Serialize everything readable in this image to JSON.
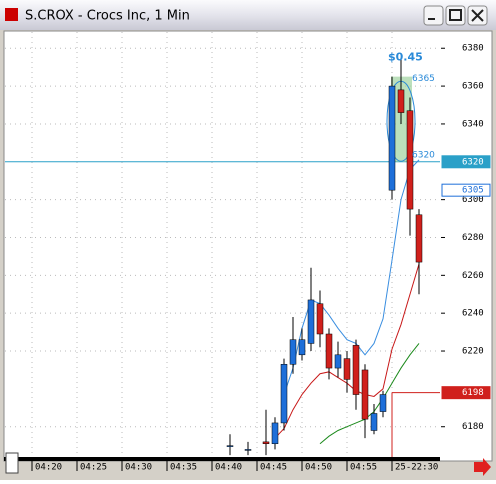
{
  "window": {
    "title": "S.CROX - Crocs Inc, 1 Min"
  },
  "chart_data": {
    "type": "candlestick",
    "categories": [
      null,
      null,
      null,
      "04:20",
      null,
      null,
      null,
      null,
      "04:25",
      null,
      null,
      null,
      null,
      "04:30",
      null,
      null,
      null,
      null,
      "04:35",
      null,
      null,
      null,
      null,
      "04:40",
      null,
      null,
      null,
      null,
      "04:45",
      null,
      null,
      null,
      null,
      "04:50",
      null,
      null,
      null,
      null,
      "04:55",
      null,
      null,
      null,
      null,
      "25-22:30",
      null,
      null,
      null
    ],
    "open": [
      null,
      null,
      null,
      null,
      null,
      null,
      null,
      null,
      null,
      null,
      null,
      null,
      null,
      null,
      null,
      null,
      null,
      null,
      null,
      null,
      null,
      null,
      null,
      null,
      null,
      6170,
      null,
      6168,
      null,
      6172,
      6171,
      6182,
      6213,
      6218,
      6224,
      6245,
      6229,
      6211,
      6216,
      6223,
      6210,
      6178,
      6188,
      6305,
      6358,
      6347,
      6292
    ],
    "high": [
      null,
      null,
      null,
      null,
      null,
      null,
      null,
      null,
      null,
      null,
      null,
      null,
      null,
      null,
      null,
      null,
      null,
      null,
      null,
      null,
      null,
      null,
      null,
      null,
      null,
      6176,
      null,
      6172,
      null,
      6189,
      6185,
      6216,
      6238,
      6232,
      6264,
      6252,
      6232,
      6225,
      6220,
      6226,
      6213,
      6192,
      6199,
      6365,
      6374,
      6354,
      6295
    ],
    "low": [
      null,
      null,
      null,
      null,
      null,
      null,
      null,
      null,
      null,
      null,
      null,
      null,
      null,
      null,
      null,
      null,
      null,
      null,
      null,
      null,
      null,
      null,
      null,
      null,
      null,
      6165,
      null,
      6165,
      null,
      6165,
      6168,
      6178,
      6208,
      6215,
      6220,
      6222,
      6205,
      6206,
      6198,
      6189,
      6174,
      6176,
      6185,
      6300,
      6340,
      6281,
      6250
    ],
    "close": [
      null,
      null,
      null,
      null,
      null,
      null,
      null,
      null,
      null,
      null,
      null,
      null,
      null,
      null,
      null,
      null,
      null,
      null,
      null,
      null,
      null,
      null,
      null,
      null,
      null,
      6170,
      null,
      6168,
      null,
      6171,
      6182,
      6213,
      6226,
      6226,
      6247,
      6229,
      6211,
      6218,
      6205,
      6197,
      6184,
      6187,
      6197,
      6360,
      6346,
      6295,
      6267
    ],
    "up_color": "#1e6fd9",
    "down_color": "#d0201c",
    "lines": [
      {
        "color": "#3a8ee0",
        "values": [
          null,
          null,
          null,
          null,
          null,
          null,
          null,
          null,
          null,
          null,
          null,
          null,
          null,
          null,
          null,
          null,
          null,
          null,
          null,
          null,
          null,
          null,
          null,
          null,
          null,
          null,
          null,
          null,
          null,
          null,
          null,
          6197,
          6211,
          6232,
          6247,
          6245,
          6239,
          6232,
          6226,
          6224,
          6218,
          6224,
          6237,
          6268,
          6300,
          6316,
          6321
        ]
      },
      {
        "color": "#c81818",
        "values": [
          null,
          null,
          null,
          null,
          null,
          null,
          null,
          null,
          null,
          null,
          null,
          null,
          null,
          null,
          null,
          null,
          null,
          null,
          null,
          null,
          null,
          null,
          null,
          null,
          null,
          null,
          null,
          null,
          null,
          null,
          6174,
          6179,
          6189,
          6197,
          6203,
          6208,
          6209,
          6206,
          6203,
          6199,
          6197,
          6196,
          6200,
          6221,
          6234,
          6250,
          6266
        ]
      },
      {
        "color": "#1c8a1c",
        "values": [
          null,
          null,
          null,
          null,
          null,
          null,
          null,
          null,
          null,
          null,
          null,
          null,
          null,
          null,
          null,
          null,
          null,
          null,
          null,
          null,
          null,
          null,
          null,
          null,
          null,
          null,
          null,
          null,
          null,
          null,
          null,
          null,
          null,
          null,
          null,
          6171,
          6175,
          6178,
          6180,
          6182,
          6184,
          6188,
          6195,
          6203,
          6211,
          6218,
          6224
        ]
      }
    ],
    "ylim": [
      6164,
      6387
    ],
    "yticks": [
      6180,
      6220,
      6240,
      6260,
      6280,
      6300,
      6340,
      6360,
      6380
    ],
    "grid": true,
    "price_markers": [
      {
        "value": 6320,
        "color": "#2aa0c8"
      },
      {
        "value": 6305,
        "color": "#1e6fd9"
      },
      {
        "value": 6198,
        "color": "#d0201c"
      }
    ],
    "annotations": [
      "$0.45",
      "6365",
      "6320"
    ]
  }
}
